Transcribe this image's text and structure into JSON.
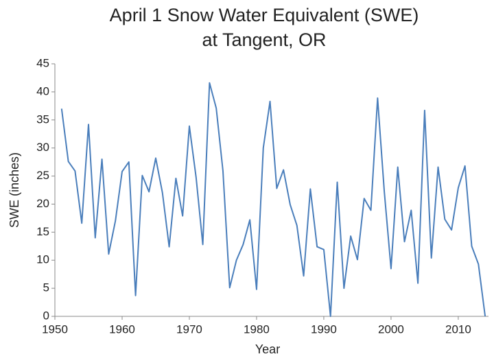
{
  "chart_data": {
    "type": "line",
    "title": [
      "April 1 Snow Water Equivalent (SWE)",
      "at Tangent, OR"
    ],
    "x_label": "Year",
    "y_label": "SWE (inches)",
    "x": [
      1951,
      1952,
      1953,
      1954,
      1955,
      1956,
      1957,
      1958,
      1959,
      1960,
      1961,
      1962,
      1963,
      1964,
      1965,
      1966,
      1967,
      1968,
      1969,
      1970,
      1971,
      1972,
      1973,
      1974,
      1975,
      1976,
      1977,
      1978,
      1979,
      1980,
      1981,
      1982,
      1983,
      1984,
      1985,
      1986,
      1987,
      1988,
      1989,
      1990,
      1991,
      1992,
      1993,
      1994,
      1995,
      1996,
      1997,
      1998,
      1999,
      2000,
      2001,
      2002,
      2003,
      2004,
      2005,
      2006,
      2007,
      2008,
      2009,
      2010,
      2011,
      2012,
      2013,
      2014
    ],
    "series": [
      {
        "name": "SWE",
        "color": "#4a7ebb",
        "values": [
          37,
          27.6,
          25.9,
          16.6,
          34.2,
          14,
          28,
          11.1,
          17,
          25.8,
          27.5,
          3.7,
          25.1,
          22.2,
          28.2,
          22,
          12.4,
          24.6,
          17.9,
          33.9,
          24.8,
          12.8,
          41.6,
          37.1,
          25.9,
          5.1,
          10,
          12.8,
          17.2,
          4.8,
          30,
          38.3,
          22.8,
          26.1,
          19.9,
          16.2,
          7.2,
          22.7,
          12.4,
          11.9,
          0,
          23.9,
          5,
          14.3,
          10.1,
          21,
          18.9,
          38.9,
          22.2,
          8.5,
          26.6,
          13.3,
          18.9,
          5.9,
          36.7,
          10.4,
          26.6,
          17.3,
          15.4,
          22.9,
          26.8,
          12.5,
          9.3,
          0
        ]
      }
    ],
    "xlim": [
      1950,
      2014.5
    ],
    "xticks": [
      1950,
      1960,
      1970,
      1980,
      1990,
      2000,
      2010
    ],
    "ylim": [
      0,
      45
    ],
    "yticks": [
      0,
      5,
      10,
      15,
      20,
      25,
      30,
      35,
      40,
      45
    ]
  }
}
